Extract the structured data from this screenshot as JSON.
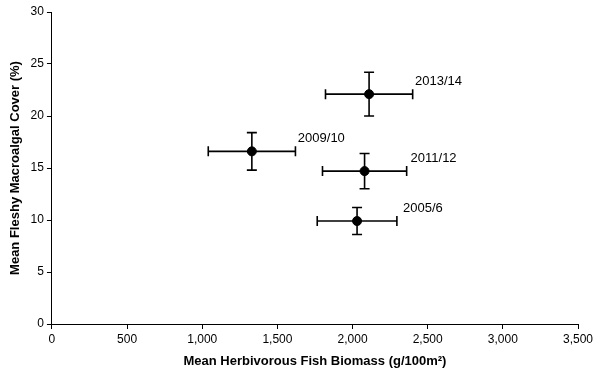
{
  "chart_data": {
    "type": "scatter",
    "x_label": "Mean Herbivorous Fish Biomass (g/100m²)",
    "y_label": "Mean Fleshy Macroalgal Cover (%)",
    "x": [
      2030,
      1330,
      2080,
      2110
    ],
    "values": [
      9.9,
      16.6,
      14.7,
      22.1
    ],
    "x_error": [
      265,
      290,
      280,
      290
    ],
    "y_error": [
      1.3,
      1.8,
      1.7,
      2.1
    ],
    "annotations": [
      "2005/6",
      "2009/10",
      "2011/12",
      "2013/14"
    ],
    "color": "#000000",
    "marker": "circle",
    "grid": false,
    "xlim": [
      0,
      3500
    ],
    "xticks": [
      0,
      500,
      {
        "value": 1000,
        "label": "1,000"
      },
      {
        "value": 1500,
        "label": "1,500"
      },
      {
        "value": 2000,
        "label": "2,000"
      },
      {
        "value": 2500,
        "label": "2,500"
      },
      {
        "value": 3000,
        "label": "3,000"
      },
      {
        "value": 3500,
        "label": "3,500"
      }
    ],
    "ylim": [
      0,
      30
    ],
    "yticks": [
      0,
      5,
      10,
      15,
      20,
      25,
      30
    ]
  }
}
